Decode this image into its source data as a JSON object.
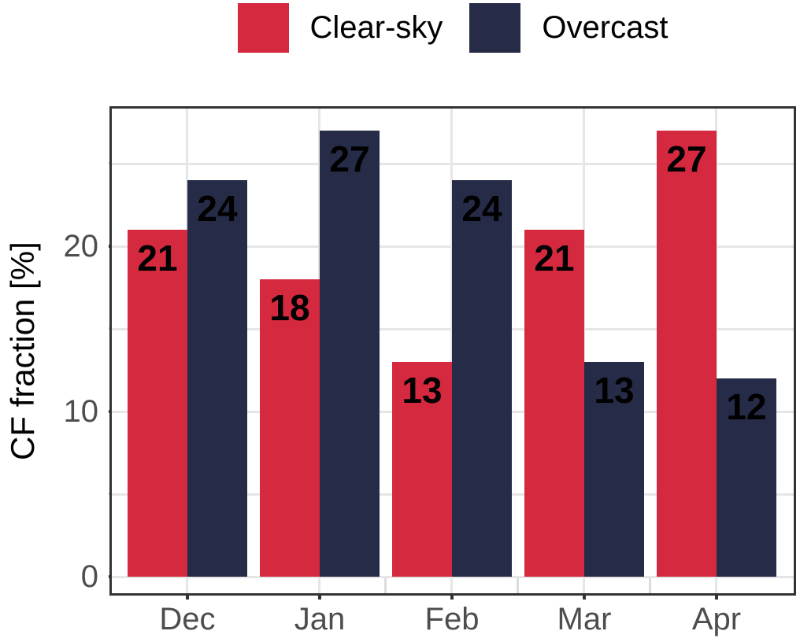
{
  "chart_data": {
    "type": "bar",
    "title": "",
    "xlabel": "",
    "ylabel": "CF fraction [%]",
    "categories": [
      "Dec",
      "Jan",
      "Feb",
      "Mar",
      "Apr"
    ],
    "series": [
      {
        "name": "Clear-sky",
        "color": "#D4293F",
        "values": [
          21,
          18,
          13,
          21,
          27
        ]
      },
      {
        "name": "Overcast",
        "color": "#262B47",
        "values": [
          24,
          27,
          24,
          13,
          12
        ]
      }
    ],
    "ylim": [
      -1.2,
      28.5
    ],
    "yticks_major": [
      0,
      10,
      20
    ],
    "yticks_minor": [
      5,
      15,
      25
    ],
    "gridlines_horizontal_every": 5,
    "grid_vertical_at_category_centers": true,
    "legend_position": "top-center",
    "value_labels_on_bars": true,
    "colors": {
      "gridline": "#E6E6E6",
      "axis_frame": "#333333",
      "tick_label": "#4D4D4D",
      "value_label": "#000000",
      "background": "#FFFFFF"
    }
  }
}
